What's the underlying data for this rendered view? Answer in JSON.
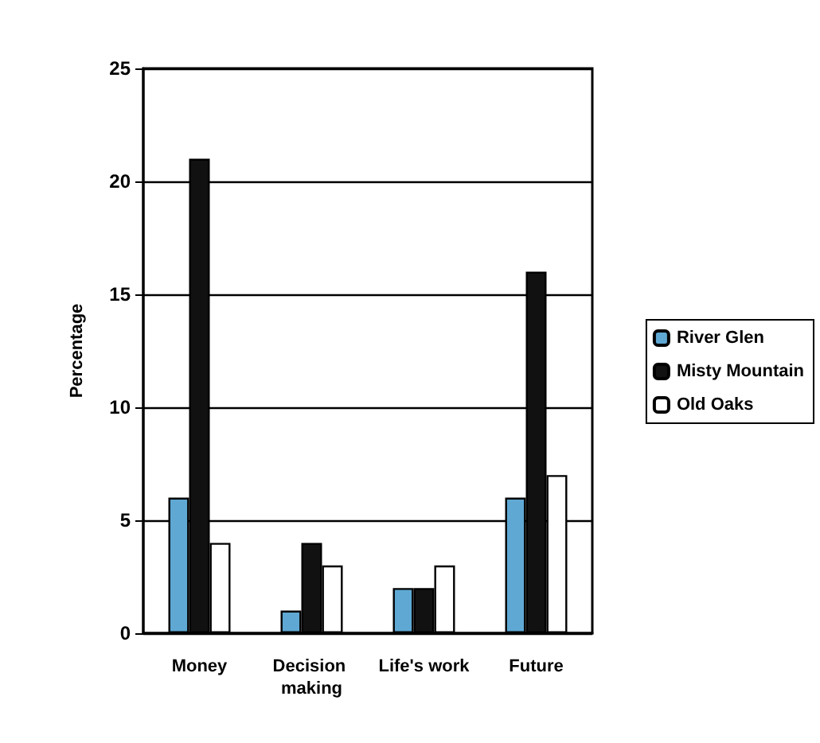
{
  "chart_data": {
    "type": "bar",
    "ylabel": "Percentage",
    "categories": [
      "Money",
      "Decision making",
      "Life's work",
      "Future"
    ],
    "series": [
      {
        "name": "River Glen",
        "color": "#5fa8d3",
        "values": [
          6,
          1,
          2,
          6
        ]
      },
      {
        "name": "Misty Mountain",
        "color": "#111111",
        "values": [
          21,
          4,
          2,
          16
        ]
      },
      {
        "name": "Old Oaks",
        "color": "#ffffff",
        "values": [
          4,
          3,
          3,
          7
        ]
      }
    ],
    "ylim": [
      0,
      25
    ],
    "yticks": [
      0,
      5,
      10,
      15,
      20,
      25
    ],
    "grid": "y",
    "legend": "right"
  }
}
